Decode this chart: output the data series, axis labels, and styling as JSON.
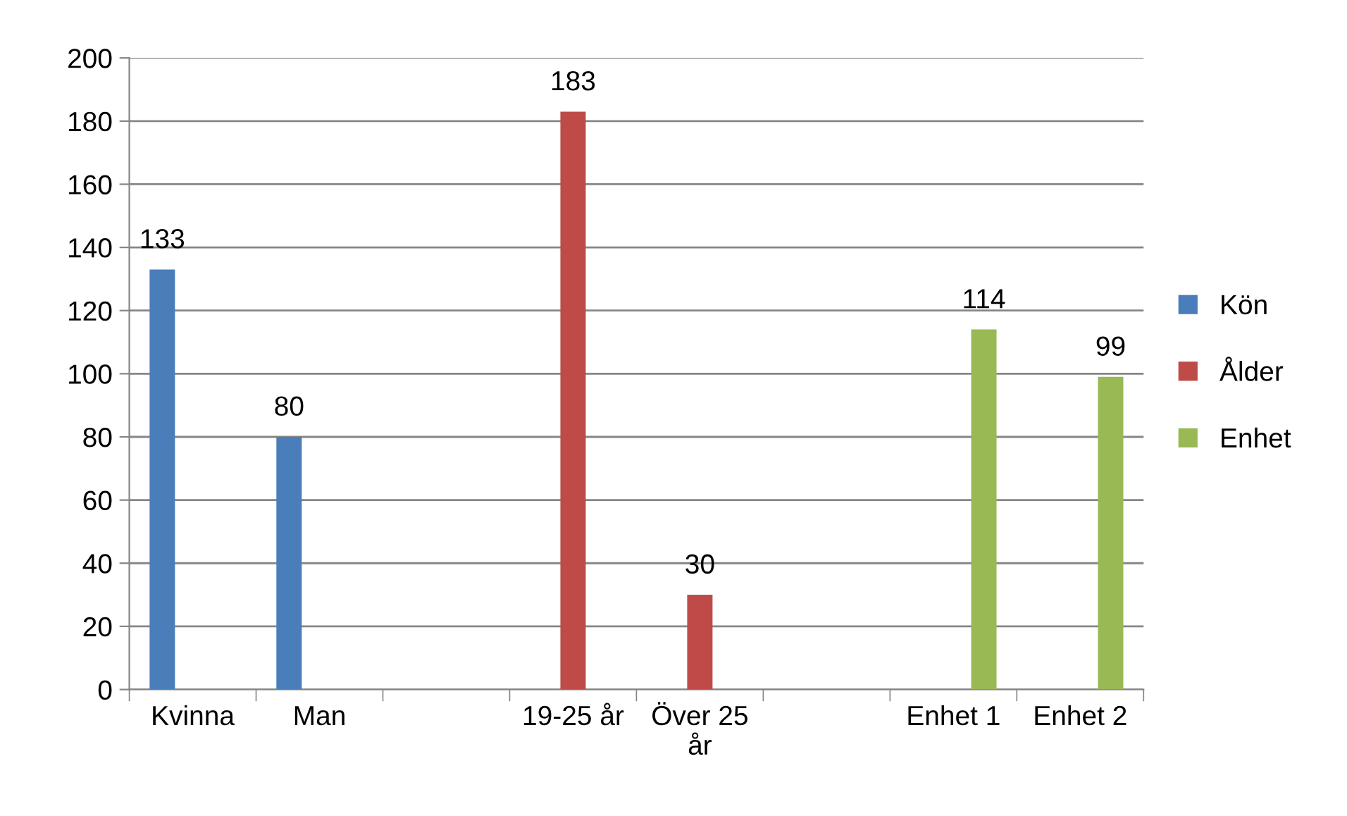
{
  "chart_data": {
    "type": "bar",
    "categories": [
      "Kvinna",
      "Man",
      null,
      "19-25 år",
      "Över 25 år",
      null,
      "Enhet 1",
      "Enhet 2"
    ],
    "series": [
      {
        "name": "Kön",
        "color": "#4a7ebb",
        "values": [
          133,
          80,
          null,
          null,
          null,
          null,
          null,
          null
        ]
      },
      {
        "name": "Ålder",
        "color": "#be4b48",
        "values": [
          null,
          null,
          null,
          183,
          30,
          null,
          null,
          null
        ]
      },
      {
        "name": "Enhet",
        "color": "#98b954",
        "values": [
          null,
          null,
          null,
          null,
          null,
          null,
          114,
          99
        ]
      }
    ],
    "ylim": [
      0,
      200
    ],
    "yticks": [
      0,
      20,
      40,
      60,
      80,
      100,
      120,
      140,
      160,
      180,
      200
    ],
    "grid": "y",
    "legend": "right",
    "data_labels": true
  }
}
